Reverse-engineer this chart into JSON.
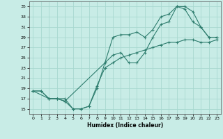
{
  "xlabel": "Humidex (Indice chaleur)",
  "xlim": [
    -0.5,
    23.5
  ],
  "ylim": [
    14,
    36
  ],
  "xticks": [
    0,
    1,
    2,
    3,
    4,
    5,
    6,
    7,
    8,
    9,
    10,
    11,
    12,
    13,
    14,
    15,
    16,
    17,
    18,
    19,
    20,
    21,
    22,
    23
  ],
  "yticks": [
    15,
    17,
    19,
    21,
    23,
    25,
    27,
    29,
    31,
    33,
    35
  ],
  "bg_color": "#c8ece6",
  "line_color": "#2e7d6e",
  "grid_color": "#a8d8d0",
  "line1_x": [
    0,
    1,
    2,
    3,
    4,
    5,
    6,
    7,
    8,
    9,
    10,
    11,
    12,
    13,
    14,
    15,
    16,
    17,
    18,
    19,
    20,
    21,
    22,
    23
  ],
  "line1_y": [
    18.5,
    18.5,
    17,
    17,
    17,
    15,
    15,
    15.5,
    19.5,
    23,
    24,
    25,
    25.5,
    26,
    26.5,
    27,
    27.5,
    28,
    28,
    28.5,
    28.5,
    28,
    28,
    28.5
  ],
  "line2_x": [
    0,
    2,
    3,
    4,
    5,
    6,
    7,
    8,
    9,
    10,
    11,
    12,
    13,
    14,
    15,
    16,
    17,
    18,
    19,
    20,
    21,
    22,
    23
  ],
  "line2_y": [
    18.5,
    17,
    17,
    16.5,
    15,
    15,
    15.5,
    19,
    24,
    29,
    29.5,
    29.5,
    30,
    29,
    30.5,
    33,
    33.5,
    35,
    35,
    34,
    31,
    29,
    29
  ],
  "line3_x": [
    0,
    1,
    2,
    3,
    4,
    9,
    10,
    11,
    12,
    13,
    14,
    15,
    16,
    17,
    18,
    19,
    20,
    21,
    22,
    23
  ],
  "line3_y": [
    18.5,
    18.5,
    17,
    17,
    16.5,
    24,
    25.5,
    26,
    24,
    24,
    26,
    29,
    31.5,
    32,
    35,
    34.5,
    32,
    31,
    29,
    29
  ]
}
